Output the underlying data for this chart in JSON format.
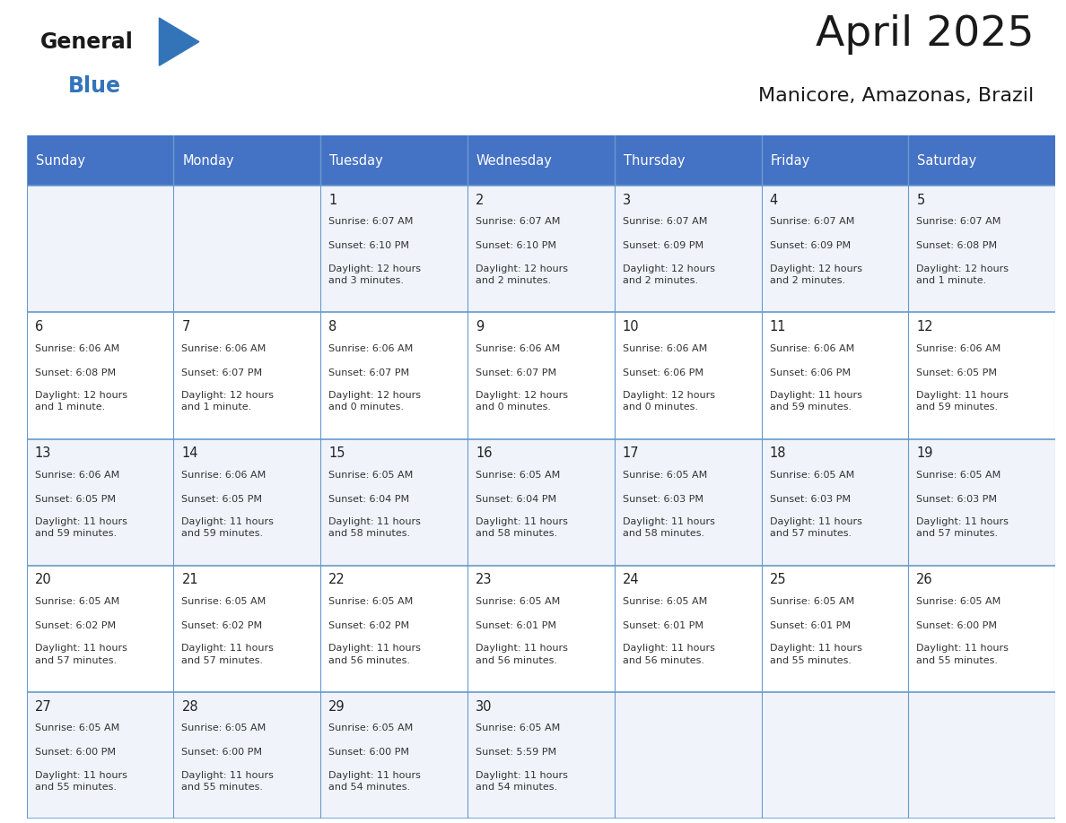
{
  "title": "April 2025",
  "subtitle": "Manicore, Amazonas, Brazil",
  "days_of_week": [
    "Sunday",
    "Monday",
    "Tuesday",
    "Wednesday",
    "Thursday",
    "Friday",
    "Saturday"
  ],
  "header_bg_color": "#4472C4",
  "header_text_color": "#FFFFFF",
  "cell_bg_even": "#F0F4FA",
  "cell_bg_odd": "#FFFFFF",
  "border_color": "#4472C4",
  "row_border_color": "#6699CC",
  "day_number_color": "#222222",
  "text_color": "#333333",
  "title_color": "#1a1a1a",
  "logo_black_color": "#1a1a1a",
  "logo_blue_color": "#3374B9",
  "background_color": "#FFFFFF",
  "num_cols": 7,
  "calendar_data": [
    [
      {
        "day": "",
        "sunrise": "",
        "sunset": "",
        "daylight": ""
      },
      {
        "day": "",
        "sunrise": "",
        "sunset": "",
        "daylight": ""
      },
      {
        "day": "1",
        "sunrise": "Sunrise: 6:07 AM",
        "sunset": "Sunset: 6:10 PM",
        "daylight": "Daylight: 12 hours\nand 3 minutes."
      },
      {
        "day": "2",
        "sunrise": "Sunrise: 6:07 AM",
        "sunset": "Sunset: 6:10 PM",
        "daylight": "Daylight: 12 hours\nand 2 minutes."
      },
      {
        "day": "3",
        "sunrise": "Sunrise: 6:07 AM",
        "sunset": "Sunset: 6:09 PM",
        "daylight": "Daylight: 12 hours\nand 2 minutes."
      },
      {
        "day": "4",
        "sunrise": "Sunrise: 6:07 AM",
        "sunset": "Sunset: 6:09 PM",
        "daylight": "Daylight: 12 hours\nand 2 minutes."
      },
      {
        "day": "5",
        "sunrise": "Sunrise: 6:07 AM",
        "sunset": "Sunset: 6:08 PM",
        "daylight": "Daylight: 12 hours\nand 1 minute."
      }
    ],
    [
      {
        "day": "6",
        "sunrise": "Sunrise: 6:06 AM",
        "sunset": "Sunset: 6:08 PM",
        "daylight": "Daylight: 12 hours\nand 1 minute."
      },
      {
        "day": "7",
        "sunrise": "Sunrise: 6:06 AM",
        "sunset": "Sunset: 6:07 PM",
        "daylight": "Daylight: 12 hours\nand 1 minute."
      },
      {
        "day": "8",
        "sunrise": "Sunrise: 6:06 AM",
        "sunset": "Sunset: 6:07 PM",
        "daylight": "Daylight: 12 hours\nand 0 minutes."
      },
      {
        "day": "9",
        "sunrise": "Sunrise: 6:06 AM",
        "sunset": "Sunset: 6:07 PM",
        "daylight": "Daylight: 12 hours\nand 0 minutes."
      },
      {
        "day": "10",
        "sunrise": "Sunrise: 6:06 AM",
        "sunset": "Sunset: 6:06 PM",
        "daylight": "Daylight: 12 hours\nand 0 minutes."
      },
      {
        "day": "11",
        "sunrise": "Sunrise: 6:06 AM",
        "sunset": "Sunset: 6:06 PM",
        "daylight": "Daylight: 11 hours\nand 59 minutes."
      },
      {
        "day": "12",
        "sunrise": "Sunrise: 6:06 AM",
        "sunset": "Sunset: 6:05 PM",
        "daylight": "Daylight: 11 hours\nand 59 minutes."
      }
    ],
    [
      {
        "day": "13",
        "sunrise": "Sunrise: 6:06 AM",
        "sunset": "Sunset: 6:05 PM",
        "daylight": "Daylight: 11 hours\nand 59 minutes."
      },
      {
        "day": "14",
        "sunrise": "Sunrise: 6:06 AM",
        "sunset": "Sunset: 6:05 PM",
        "daylight": "Daylight: 11 hours\nand 59 minutes."
      },
      {
        "day": "15",
        "sunrise": "Sunrise: 6:05 AM",
        "sunset": "Sunset: 6:04 PM",
        "daylight": "Daylight: 11 hours\nand 58 minutes."
      },
      {
        "day": "16",
        "sunrise": "Sunrise: 6:05 AM",
        "sunset": "Sunset: 6:04 PM",
        "daylight": "Daylight: 11 hours\nand 58 minutes."
      },
      {
        "day": "17",
        "sunrise": "Sunrise: 6:05 AM",
        "sunset": "Sunset: 6:03 PM",
        "daylight": "Daylight: 11 hours\nand 58 minutes."
      },
      {
        "day": "18",
        "sunrise": "Sunrise: 6:05 AM",
        "sunset": "Sunset: 6:03 PM",
        "daylight": "Daylight: 11 hours\nand 57 minutes."
      },
      {
        "day": "19",
        "sunrise": "Sunrise: 6:05 AM",
        "sunset": "Sunset: 6:03 PM",
        "daylight": "Daylight: 11 hours\nand 57 minutes."
      }
    ],
    [
      {
        "day": "20",
        "sunrise": "Sunrise: 6:05 AM",
        "sunset": "Sunset: 6:02 PM",
        "daylight": "Daylight: 11 hours\nand 57 minutes."
      },
      {
        "day": "21",
        "sunrise": "Sunrise: 6:05 AM",
        "sunset": "Sunset: 6:02 PM",
        "daylight": "Daylight: 11 hours\nand 57 minutes."
      },
      {
        "day": "22",
        "sunrise": "Sunrise: 6:05 AM",
        "sunset": "Sunset: 6:02 PM",
        "daylight": "Daylight: 11 hours\nand 56 minutes."
      },
      {
        "day": "23",
        "sunrise": "Sunrise: 6:05 AM",
        "sunset": "Sunset: 6:01 PM",
        "daylight": "Daylight: 11 hours\nand 56 minutes."
      },
      {
        "day": "24",
        "sunrise": "Sunrise: 6:05 AM",
        "sunset": "Sunset: 6:01 PM",
        "daylight": "Daylight: 11 hours\nand 56 minutes."
      },
      {
        "day": "25",
        "sunrise": "Sunrise: 6:05 AM",
        "sunset": "Sunset: 6:01 PM",
        "daylight": "Daylight: 11 hours\nand 55 minutes."
      },
      {
        "day": "26",
        "sunrise": "Sunrise: 6:05 AM",
        "sunset": "Sunset: 6:00 PM",
        "daylight": "Daylight: 11 hours\nand 55 minutes."
      }
    ],
    [
      {
        "day": "27",
        "sunrise": "Sunrise: 6:05 AM",
        "sunset": "Sunset: 6:00 PM",
        "daylight": "Daylight: 11 hours\nand 55 minutes."
      },
      {
        "day": "28",
        "sunrise": "Sunrise: 6:05 AM",
        "sunset": "Sunset: 6:00 PM",
        "daylight": "Daylight: 11 hours\nand 55 minutes."
      },
      {
        "day": "29",
        "sunrise": "Sunrise: 6:05 AM",
        "sunset": "Sunset: 6:00 PM",
        "daylight": "Daylight: 11 hours\nand 54 minutes."
      },
      {
        "day": "30",
        "sunrise": "Sunrise: 6:05 AM",
        "sunset": "Sunset: 5:59 PM",
        "daylight": "Daylight: 11 hours\nand 54 minutes."
      },
      {
        "day": "",
        "sunrise": "",
        "sunset": "",
        "daylight": ""
      },
      {
        "day": "",
        "sunrise": "",
        "sunset": "",
        "daylight": ""
      },
      {
        "day": "",
        "sunrise": "",
        "sunset": "",
        "daylight": ""
      }
    ]
  ]
}
